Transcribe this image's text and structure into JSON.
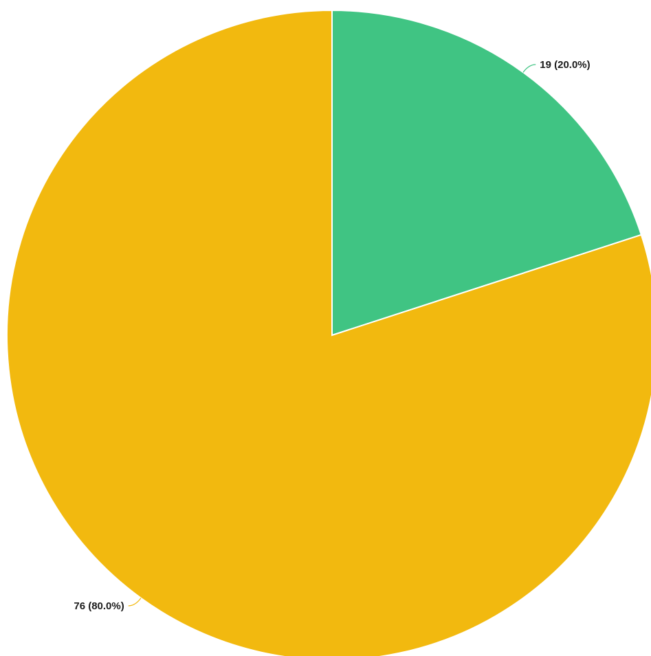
{
  "chart_data": {
    "type": "pie",
    "start_angle_deg": 0,
    "direction": "clockwise",
    "slices": [
      {
        "value": 19,
        "percent": 20.0,
        "label": "19 (20.0%)",
        "color": "#40C483"
      },
      {
        "value": 76,
        "percent": 80.0,
        "label": "76 (80.0%)",
        "color": "#F2B90F"
      }
    ]
  }
}
